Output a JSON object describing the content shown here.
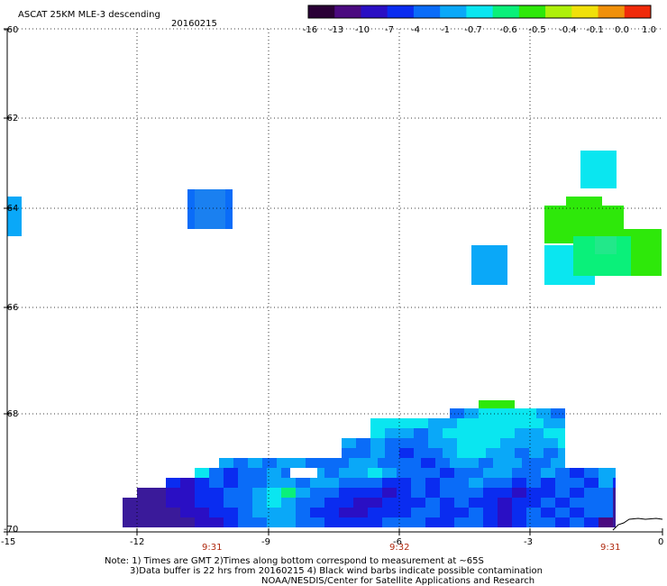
{
  "header": {
    "title": "ASCAT 25KM MLE-3 descending",
    "date": "20160215"
  },
  "colorbar": {
    "tick_labels": [
      "-16",
      "-13",
      "-10",
      "-7",
      "-4",
      "-1",
      "-0.7",
      "-0.6",
      "-0.5",
      "-0.4",
      "-0.1",
      "0.0",
      "1.0"
    ],
    "colors": [
      "#2a0036",
      "#4b0a80",
      "#2a0fc4",
      "#0a2cf0",
      "#0a6cf8",
      "#0aa8f8",
      "#0ae6f0",
      "#0af07a",
      "#2ee80a",
      "#aef00a",
      "#f0e00a",
      "#f0900a",
      "#f02a0a"
    ]
  },
  "axes": {
    "lat_labels": [
      "-60",
      "-62",
      "-64",
      "-66",
      "-68",
      "-70"
    ],
    "lon_labels": [
      "-15",
      "-12",
      "-9",
      "-6",
      "-3",
      "0"
    ],
    "time_labels": [
      "9:31",
      "9:32",
      "9:31"
    ]
  },
  "notes": {
    "line1": "Note: 1) Times are GMT 2)Times along bottom correspond to measurement at ~65S",
    "line2": "3)Data buffer is 22 hrs from 20160215 4) Black wind barbs indicate possible contamination",
    "line3": "NOAA/NESDIS/Center for Satellite Applications and Research"
  },
  "palette": {
    "c1": "#4b0a80",
    "c2": "#2a0fc4",
    "c3": "#0a2cf0",
    "c4": "#0a6cf8",
    "c5": "#0aa8f8",
    "c6": "#0ae6f0",
    "c7": "#0af07a",
    "c8": "#2ee80a",
    "c9": "#1a5cf0",
    "c10": "#3a1a9a"
  }
}
